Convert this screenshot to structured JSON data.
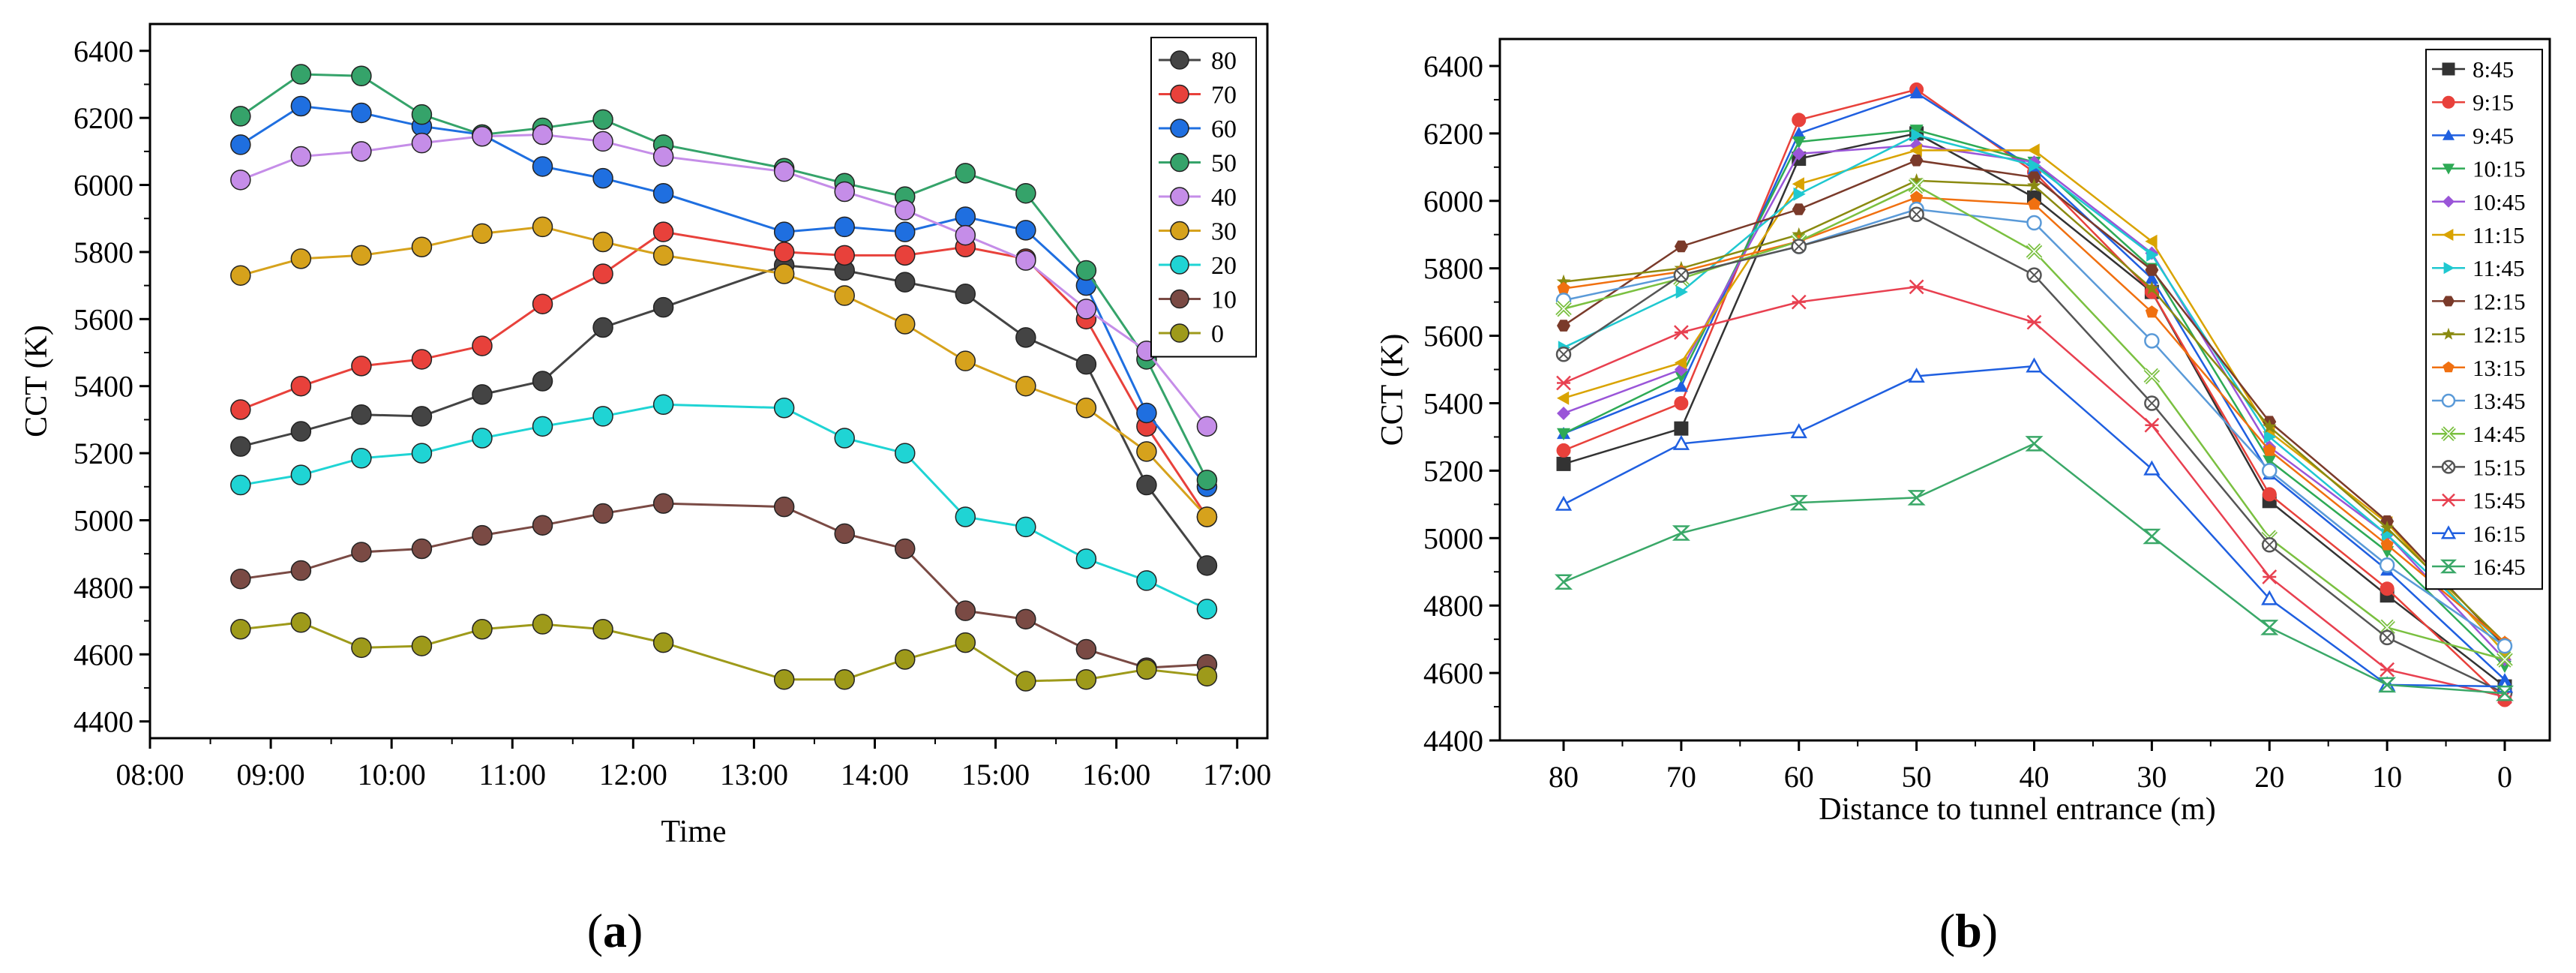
{
  "chart_data": [
    {
      "type": "line",
      "panel_label": "(a)",
      "panel_letter": "a",
      "title": "",
      "xlabel": "Time",
      "ylabel": "CCT (K)",
      "xlim": [
        8.0,
        17.25
      ],
      "ylim": [
        4350,
        6480
      ],
      "x_tick_values": [
        8,
        9,
        10,
        11,
        12,
        13,
        14,
        15,
        16,
        17
      ],
      "x_tick_labels": [
        "08:00",
        "09:00",
        "10:00",
        "11:00",
        "12:00",
        "13:00",
        "14:00",
        "15:00",
        "16:00",
        "17:00"
      ],
      "y_ticks": [
        4400,
        4600,
        4800,
        5000,
        5200,
        5400,
        5600,
        5800,
        6000,
        6200,
        6400
      ],
      "legend_position": "top-right",
      "x": [
        8.75,
        9.25,
        9.75,
        10.25,
        10.75,
        11.25,
        11.75,
        12.25,
        13.25,
        13.75,
        14.25,
        14.75,
        15.25,
        15.75,
        16.25,
        16.75
      ],
      "series": [
        {
          "name": "80",
          "color": "#444444",
          "values": [
            5220,
            5265,
            5315,
            5310,
            5375,
            5415,
            5575,
            5635,
            5760,
            5745,
            5710,
            5675,
            5545,
            5465,
            5105,
            4865
          ]
        },
        {
          "name": "70",
          "color": "#e8413b",
          "values": [
            5330,
            5400,
            5460,
            5480,
            5520,
            5645,
            5735,
            5860,
            5800,
            5790,
            5790,
            5815,
            5780,
            5600,
            5280,
            5010
          ]
        },
        {
          "name": "60",
          "color": "#1f6fe0",
          "values": [
            6120,
            6235,
            6215,
            6175,
            6150,
            6055,
            6020,
            5975,
            5860,
            5875,
            5860,
            5905,
            5865,
            5700,
            5320,
            5100
          ]
        },
        {
          "name": "50",
          "color": "#35a36a",
          "values": [
            6205,
            6330,
            6325,
            6210,
            6150,
            6170,
            6195,
            6120,
            6050,
            6005,
            5965,
            6035,
            5975,
            5745,
            5480,
            5120
          ]
        },
        {
          "name": "40",
          "color": "#c58de8",
          "values": [
            6015,
            6085,
            6100,
            6125,
            6145,
            6150,
            6130,
            6085,
            6040,
            5980,
            5925,
            5850,
            5775,
            5630,
            5505,
            5280
          ]
        },
        {
          "name": "30",
          "color": "#d6a21c",
          "values": [
            5730,
            5780,
            5790,
            5815,
            5855,
            5875,
            5830,
            5790,
            5735,
            5670,
            5585,
            5475,
            5400,
            5335,
            5205,
            5010
          ]
        },
        {
          "name": "20",
          "color": "#1fd4d4",
          "values": [
            5105,
            5135,
            5185,
            5200,
            5245,
            5280,
            5310,
            5345,
            5335,
            5245,
            5200,
            5010,
            4980,
            4885,
            4820,
            4735
          ]
        },
        {
          "name": "10",
          "color": "#7a4a44",
          "values": [
            4825,
            4850,
            4905,
            4915,
            4955,
            4985,
            5020,
            5050,
            5040,
            4960,
            4915,
            4730,
            4705,
            4615,
            4560,
            4570
          ]
        },
        {
          "name": "0",
          "color": "#9e9a1a",
          "values": [
            4675,
            4695,
            4620,
            4625,
            4675,
            4690,
            4675,
            4635,
            4525,
            4525,
            4585,
            4635,
            4520,
            4525,
            4555,
            4535
          ]
        }
      ]
    },
    {
      "type": "line",
      "panel_label": "(b)",
      "panel_letter": "b",
      "title": "",
      "xlabel": "Distance to tunnel entrance (m)",
      "ylabel": "CCT (K)",
      "categories": [
        "80",
        "70",
        "60",
        "50",
        "40",
        "30",
        "20",
        "10",
        "0"
      ],
      "ylim": [
        4400,
        6480
      ],
      "y_ticks": [
        4400,
        4600,
        4800,
        5000,
        5200,
        5400,
        5600,
        5800,
        6000,
        6200,
        6400
      ],
      "legend_position": "top-right",
      "series": [
        {
          "name": "8:45",
          "color": "#333333",
          "marker": "square",
          "values": [
            5220,
            5325,
            6125,
            6200,
            6010,
            5730,
            5110,
            4830,
            4560
          ]
        },
        {
          "name": "9:15",
          "color": "#e8413b",
          "marker": "circle",
          "values": [
            5260,
            5400,
            6240,
            6330,
            6085,
            5730,
            5130,
            4850,
            4520
          ]
        },
        {
          "name": "9:45",
          "color": "#1f5fe0",
          "marker": "triangle-up",
          "values": [
            5310,
            5450,
            6200,
            6320,
            6095,
            5770,
            5190,
            4905,
            4580
          ]
        },
        {
          "name": "10:15",
          "color": "#2eaa55",
          "marker": "triangle-down",
          "values": [
            5310,
            5480,
            6175,
            6210,
            6115,
            5800,
            5230,
            4960,
            4620
          ]
        },
        {
          "name": "10:45",
          "color": "#9a55d8",
          "marker": "diamond",
          "values": [
            5370,
            5500,
            6140,
            6165,
            6115,
            5845,
            5270,
            5010,
            4640
          ]
        },
        {
          "name": "11:15",
          "color": "#d9a300",
          "marker": "triangle-left",
          "values": [
            5415,
            5520,
            6050,
            6150,
            6150,
            5880,
            5315,
            5045,
            4660
          ]
        },
        {
          "name": "11:45",
          "color": "#1fc8d0",
          "marker": "triangle-right",
          "values": [
            5565,
            5730,
            6020,
            6195,
            6105,
            5840,
            5300,
            5010,
            4680
          ]
        },
        {
          "name": "12:15",
          "color": "#7a3a2a",
          "marker": "hexagon",
          "values": [
            5630,
            5865,
            5975,
            6120,
            6070,
            5795,
            5345,
            5050,
            4680
          ]
        },
        {
          "name": "12:15",
          "color": "#8a8a10",
          "marker": "star",
          "values": [
            5760,
            5800,
            5900,
            6060,
            6045,
            5740,
            5330,
            5030,
            4690
          ]
        },
        {
          "name": "13:15",
          "color": "#f07010",
          "marker": "pentagon",
          "values": [
            5740,
            5790,
            5880,
            6010,
            5990,
            5670,
            5260,
            4980,
            4690
          ]
        },
        {
          "name": "13:45",
          "color": "#5a9ad8",
          "marker": "open-circle",
          "values": [
            5705,
            5780,
            5865,
            5975,
            5935,
            5585,
            5200,
            4920,
            4680
          ]
        },
        {
          "name": "14:45",
          "color": "#7ac040",
          "marker": "open-x",
          "values": [
            5680,
            5770,
            5880,
            6045,
            5850,
            5480,
            5000,
            4735,
            4640
          ]
        },
        {
          "name": "15:15",
          "color": "#555555",
          "marker": "open-circle-x",
          "values": [
            5545,
            5780,
            5865,
            5960,
            5780,
            5400,
            4980,
            4705,
            4540
          ]
        },
        {
          "name": "15:45",
          "color": "#e84050",
          "marker": "asterisk",
          "values": [
            5460,
            5610,
            5700,
            5745,
            5640,
            5335,
            4885,
            4610,
            4530
          ]
        },
        {
          "name": "16:15",
          "color": "#1f5fe0",
          "marker": "thin-triangle",
          "values": [
            5100,
            5280,
            5315,
            5480,
            5510,
            5205,
            4820,
            4565,
            4560
          ]
        },
        {
          "name": "16:45",
          "color": "#3aa868",
          "marker": "hourglass",
          "values": [
            4870,
            5015,
            5105,
            5120,
            5280,
            5005,
            4735,
            4565,
            4540
          ]
        }
      ]
    }
  ]
}
